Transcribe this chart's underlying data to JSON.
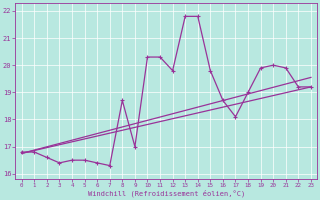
{
  "bg_color": "#b8e8e0",
  "grid_color": "#ffffff",
  "line_color": "#993399",
  "xlabel": "Windchill (Refroidissement éolien,°C)",
  "xlim": [
    -0.5,
    23.5
  ],
  "ylim": [
    15.8,
    22.3
  ],
  "yticks": [
    16,
    17,
    18,
    19,
    20,
    21,
    22
  ],
  "xticks": [
    0,
    1,
    2,
    3,
    4,
    5,
    6,
    7,
    8,
    9,
    10,
    11,
    12,
    13,
    14,
    15,
    16,
    17,
    18,
    19,
    20,
    21,
    22,
    23
  ],
  "series1_x": [
    0,
    1,
    2,
    3,
    4,
    5,
    6,
    7,
    8,
    9,
    10,
    11,
    12,
    13,
    14,
    15,
    16,
    17,
    18,
    19,
    20,
    21,
    22,
    23
  ],
  "series1_y": [
    16.8,
    16.8,
    16.6,
    16.4,
    16.5,
    16.5,
    16.4,
    16.3,
    18.7,
    17.0,
    20.3,
    20.3,
    19.8,
    21.8,
    21.8,
    19.8,
    18.7,
    18.1,
    19.0,
    19.9,
    20.0,
    19.9,
    19.2,
    19.2
  ],
  "series2_x": [
    0,
    23
  ],
  "series2_y": [
    16.75,
    19.2
  ],
  "series3_x": [
    0,
    23
  ],
  "series3_y": [
    16.75,
    19.55
  ],
  "marker": "+",
  "markersize": 3.5,
  "linewidth": 0.9
}
